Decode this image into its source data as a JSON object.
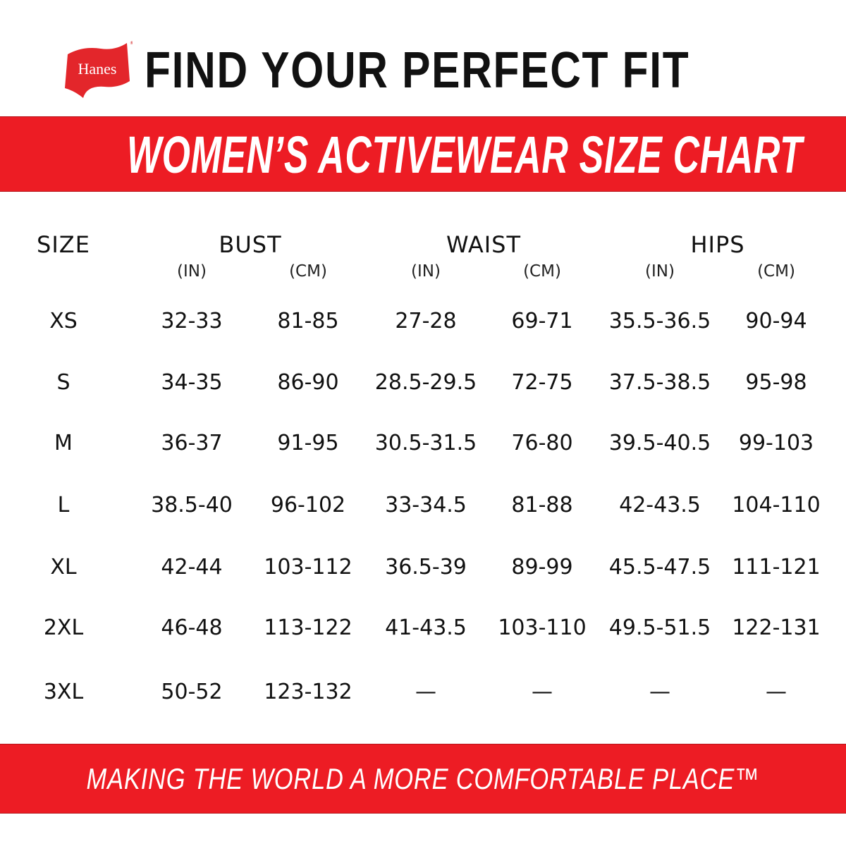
{
  "brand": {
    "logo_text": "Hanes",
    "color": "#ed1c24"
  },
  "header": {
    "title": "FIND YOUR PERFECT FIT"
  },
  "banner": {
    "title": "WOMEN’S ACTIVEWEAR SIZE CHART"
  },
  "table": {
    "size_header": "SIZE",
    "groups": [
      {
        "label": "BUST",
        "units": [
          "(IN)",
          "(CM)"
        ]
      },
      {
        "label": "WAIST",
        "units": [
          "(IN)",
          "(CM)"
        ]
      },
      {
        "label": "HIPS",
        "units": [
          "(IN)",
          "(CM)"
        ]
      }
    ],
    "rows": [
      [
        "XS",
        "32-33",
        "81-85",
        "27-28",
        "69-71",
        "35.5-36.5",
        "90-94"
      ],
      [
        "S",
        "34-35",
        "86-90",
        "28.5-29.5",
        "72-75",
        "37.5-38.5",
        "95-98"
      ],
      [
        "M",
        "36-37",
        "91-95",
        "30.5-31.5",
        "76-80",
        "39.5-40.5",
        "99-103"
      ],
      [
        "L",
        "38.5-40",
        "96-102",
        "33-34.5",
        "81-88",
        "42-43.5",
        "104-110"
      ],
      [
        "XL",
        "42-44",
        "103-112",
        "36.5-39",
        "89-99",
        "45.5-47.5",
        "111-121"
      ],
      [
        "2XL",
        "46-48",
        "113-122",
        "41-43.5",
        "103-110",
        "49.5-51.5",
        "122-131"
      ],
      [
        "3XL",
        "50-52",
        "123-132",
        "—",
        "—",
        "—",
        "—"
      ]
    ]
  },
  "footer": {
    "slogan": "MAKING THE WORLD A MORE COMFORTABLE PLACE™"
  }
}
